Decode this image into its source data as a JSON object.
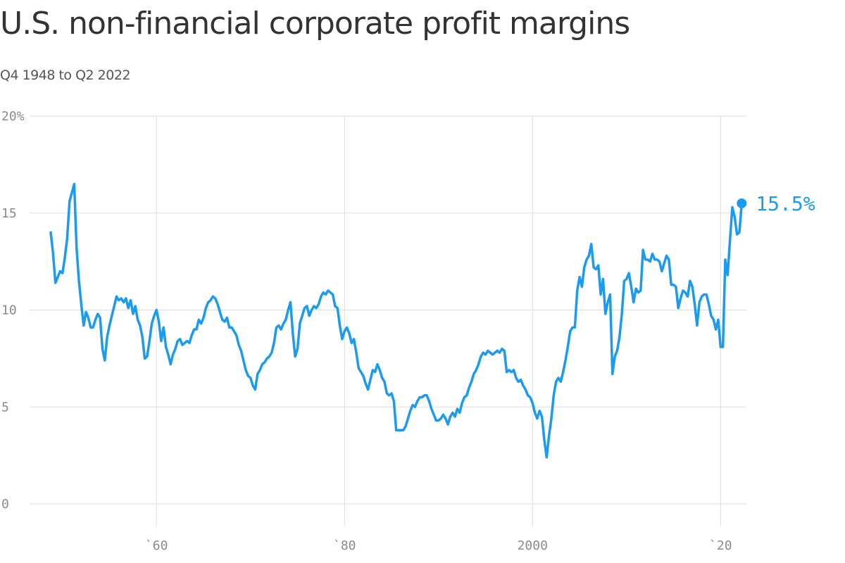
{
  "title": "U.S. non-financial corporate profit margins",
  "subtitle": "Q4 1948 to Q2 2022",
  "chart_data": {
    "type": "line",
    "ylim": [
      0,
      20
    ],
    "xlim": [
      1946.5,
      2022.75
    ],
    "y_ticks": [
      {
        "value": 0,
        "label": "0"
      },
      {
        "value": 5,
        "label": "5"
      },
      {
        "value": 10,
        "label": "10"
      },
      {
        "value": 15,
        "label": "15"
      },
      {
        "value": 20,
        "label": "20%"
      }
    ],
    "x_ticks": [
      {
        "value": 1960,
        "label": "`60"
      },
      {
        "value": 1980,
        "label": "`80"
      },
      {
        "value": 2000,
        "label": "2000"
      },
      {
        "value": 2020,
        "label": "`20"
      }
    ],
    "grid": true,
    "colors": {
      "line": "#1a9bf0",
      "grid": "#dddddd"
    },
    "end_label": "15.5%",
    "series": [
      {
        "points": [
          [
            1948.75,
            14.0
          ],
          [
            1949.0,
            12.9
          ],
          [
            1949.25,
            11.4
          ],
          [
            1949.5,
            11.7
          ],
          [
            1949.75,
            12.0
          ],
          [
            1950.0,
            11.9
          ],
          [
            1950.25,
            12.7
          ],
          [
            1950.5,
            13.7
          ],
          [
            1950.75,
            15.6
          ],
          [
            1951.25,
            16.5
          ],
          [
            1951.5,
            13.2
          ],
          [
            1951.75,
            11.5
          ],
          [
            1952.0,
            10.3
          ],
          [
            1952.25,
            9.2
          ],
          [
            1952.5,
            9.9
          ],
          [
            1952.75,
            9.6
          ],
          [
            1953.0,
            9.1
          ],
          [
            1953.25,
            9.1
          ],
          [
            1953.5,
            9.5
          ],
          [
            1953.75,
            9.8
          ],
          [
            1954.0,
            9.6
          ],
          [
            1954.25,
            8.0
          ],
          [
            1954.5,
            7.4
          ],
          [
            1954.75,
            8.6
          ],
          [
            1955.0,
            9.2
          ],
          [
            1955.25,
            9.7
          ],
          [
            1955.5,
            10.2
          ],
          [
            1955.75,
            10.7
          ],
          [
            1956.0,
            10.5
          ],
          [
            1956.25,
            10.6
          ],
          [
            1956.5,
            10.4
          ],
          [
            1956.75,
            10.6
          ],
          [
            1957.0,
            10.1
          ],
          [
            1957.25,
            10.5
          ],
          [
            1957.5,
            9.8
          ],
          [
            1957.75,
            10.2
          ],
          [
            1958.0,
            9.5
          ],
          [
            1958.25,
            9.2
          ],
          [
            1958.5,
            8.6
          ],
          [
            1958.75,
            7.5
          ],
          [
            1959.0,
            7.6
          ],
          [
            1959.25,
            8.4
          ],
          [
            1959.5,
            9.3
          ],
          [
            1959.75,
            9.7
          ],
          [
            1960.0,
            10.0
          ],
          [
            1960.25,
            9.4
          ],
          [
            1960.5,
            8.4
          ],
          [
            1960.75,
            9.1
          ],
          [
            1961.0,
            8.1
          ],
          [
            1961.25,
            7.7
          ],
          [
            1961.5,
            7.2
          ],
          [
            1961.75,
            7.7
          ],
          [
            1962.0,
            8.0
          ],
          [
            1962.25,
            8.4
          ],
          [
            1962.5,
            8.5
          ],
          [
            1962.75,
            8.2
          ],
          [
            1963.0,
            8.3
          ],
          [
            1963.25,
            8.4
          ],
          [
            1963.5,
            8.3
          ],
          [
            1963.75,
            8.7
          ],
          [
            1964.0,
            9.0
          ],
          [
            1964.25,
            9.0
          ],
          [
            1964.5,
            9.5
          ],
          [
            1964.75,
            9.3
          ],
          [
            1965.0,
            9.6
          ],
          [
            1965.25,
            10.1
          ],
          [
            1965.5,
            10.4
          ],
          [
            1965.75,
            10.5
          ],
          [
            1966.0,
            10.7
          ],
          [
            1966.25,
            10.6
          ],
          [
            1966.5,
            10.3
          ],
          [
            1966.75,
            9.9
          ],
          [
            1967.0,
            9.5
          ],
          [
            1967.25,
            9.4
          ],
          [
            1967.5,
            9.6
          ],
          [
            1967.75,
            9.1
          ],
          [
            1968.0,
            9.1
          ],
          [
            1968.25,
            8.9
          ],
          [
            1968.5,
            8.7
          ],
          [
            1968.75,
            8.2
          ],
          [
            1969.0,
            7.9
          ],
          [
            1969.25,
            7.4
          ],
          [
            1969.5,
            6.9
          ],
          [
            1969.75,
            6.6
          ],
          [
            1970.0,
            6.5
          ],
          [
            1970.25,
            6.1
          ],
          [
            1970.5,
            5.9
          ],
          [
            1970.75,
            6.7
          ],
          [
            1971.0,
            6.9
          ],
          [
            1971.25,
            7.2
          ],
          [
            1971.5,
            7.3
          ],
          [
            1971.75,
            7.5
          ],
          [
            1972.0,
            7.6
          ],
          [
            1972.25,
            7.8
          ],
          [
            1972.5,
            8.3
          ],
          [
            1972.75,
            9.1
          ],
          [
            1973.0,
            9.2
          ],
          [
            1973.25,
            9.0
          ],
          [
            1973.5,
            9.3
          ],
          [
            1973.75,
            9.5
          ],
          [
            1974.0,
            10.0
          ],
          [
            1974.25,
            10.4
          ],
          [
            1974.5,
            8.8
          ],
          [
            1974.75,
            7.6
          ],
          [
            1975.0,
            8.0
          ],
          [
            1975.25,
            9.3
          ],
          [
            1975.5,
            9.7
          ],
          [
            1975.75,
            10.1
          ],
          [
            1976.0,
            10.2
          ],
          [
            1976.25,
            9.7
          ],
          [
            1976.5,
            10.0
          ],
          [
            1976.75,
            10.2
          ],
          [
            1977.0,
            10.1
          ],
          [
            1977.25,
            10.3
          ],
          [
            1977.5,
            10.7
          ],
          [
            1977.75,
            10.9
          ],
          [
            1978.0,
            10.8
          ],
          [
            1978.25,
            11.0
          ],
          [
            1978.5,
            10.9
          ],
          [
            1978.75,
            10.8
          ],
          [
            1979.0,
            10.2
          ],
          [
            1979.25,
            10.1
          ],
          [
            1979.5,
            9.2
          ],
          [
            1979.75,
            8.5
          ],
          [
            1980.0,
            8.9
          ],
          [
            1980.25,
            9.1
          ],
          [
            1980.5,
            8.8
          ],
          [
            1980.75,
            8.3
          ],
          [
            1981.0,
            8.5
          ],
          [
            1981.25,
            7.8
          ],
          [
            1981.5,
            7.0
          ],
          [
            1981.75,
            6.8
          ],
          [
            1982.0,
            6.6
          ],
          [
            1982.25,
            6.2
          ],
          [
            1982.5,
            5.9
          ],
          [
            1982.75,
            6.4
          ],
          [
            1983.0,
            6.9
          ],
          [
            1983.25,
            6.8
          ],
          [
            1983.5,
            7.2
          ],
          [
            1983.75,
            6.9
          ],
          [
            1984.0,
            6.5
          ],
          [
            1984.25,
            6.3
          ],
          [
            1984.5,
            5.7
          ],
          [
            1984.75,
            5.6
          ],
          [
            1985.0,
            5.7
          ],
          [
            1985.25,
            5.3
          ],
          [
            1985.5,
            3.8
          ],
          [
            1985.75,
            3.8
          ],
          [
            1986.0,
            3.8
          ],
          [
            1986.25,
            3.8
          ],
          [
            1986.5,
            4.0
          ],
          [
            1986.75,
            4.4
          ],
          [
            1987.0,
            4.8
          ],
          [
            1987.25,
            5.1
          ],
          [
            1987.5,
            5.0
          ],
          [
            1987.75,
            5.3
          ],
          [
            1988.0,
            5.5
          ],
          [
            1988.25,
            5.5
          ],
          [
            1988.5,
            5.6
          ],
          [
            1988.75,
            5.6
          ],
          [
            1989.0,
            5.3
          ],
          [
            1989.25,
            4.9
          ],
          [
            1989.5,
            4.6
          ],
          [
            1989.75,
            4.3
          ],
          [
            1990.0,
            4.3
          ],
          [
            1990.25,
            4.4
          ],
          [
            1990.5,
            4.6
          ],
          [
            1990.75,
            4.4
          ],
          [
            1991.0,
            4.1
          ],
          [
            1991.25,
            4.5
          ],
          [
            1991.5,
            4.7
          ],
          [
            1991.75,
            4.5
          ],
          [
            1992.0,
            4.9
          ],
          [
            1992.25,
            4.7
          ],
          [
            1992.5,
            5.2
          ],
          [
            1992.75,
            5.5
          ],
          [
            1993.0,
            5.6
          ],
          [
            1993.25,
            6.0
          ],
          [
            1993.5,
            6.3
          ],
          [
            1993.75,
            6.7
          ],
          [
            1994.0,
            6.9
          ],
          [
            1994.25,
            7.2
          ],
          [
            1994.5,
            7.6
          ],
          [
            1994.75,
            7.8
          ],
          [
            1995.0,
            7.7
          ],
          [
            1995.25,
            7.9
          ],
          [
            1995.5,
            7.8
          ],
          [
            1995.75,
            7.7
          ],
          [
            1996.0,
            7.8
          ],
          [
            1996.25,
            7.9
          ],
          [
            1996.5,
            7.8
          ],
          [
            1996.75,
            8.0
          ],
          [
            1997.0,
            7.9
          ],
          [
            1997.25,
            6.8
          ],
          [
            1997.5,
            6.9
          ],
          [
            1997.75,
            6.8
          ],
          [
            1998.0,
            6.9
          ],
          [
            1998.25,
            6.5
          ],
          [
            1998.5,
            6.3
          ],
          [
            1998.75,
            6.4
          ],
          [
            1999.0,
            6.1
          ],
          [
            1999.25,
            5.9
          ],
          [
            1999.5,
            5.6
          ],
          [
            1999.75,
            5.5
          ],
          [
            2000.0,
            5.2
          ],
          [
            2000.25,
            4.7
          ],
          [
            2000.5,
            4.4
          ],
          [
            2000.75,
            4.8
          ],
          [
            2001.0,
            4.5
          ],
          [
            2001.25,
            3.3
          ],
          [
            2001.5,
            2.4
          ],
          [
            2001.75,
            3.5
          ],
          [
            2002.0,
            4.4
          ],
          [
            2002.25,
            5.6
          ],
          [
            2002.5,
            6.3
          ],
          [
            2002.75,
            6.5
          ],
          [
            2003.0,
            6.3
          ],
          [
            2003.25,
            6.8
          ],
          [
            2003.5,
            7.4
          ],
          [
            2003.75,
            8.1
          ],
          [
            2004.0,
            8.9
          ],
          [
            2004.25,
            9.1
          ],
          [
            2004.5,
            9.1
          ],
          [
            2004.75,
            11.0
          ],
          [
            2005.0,
            11.7
          ],
          [
            2005.25,
            11.2
          ],
          [
            2005.5,
            12.2
          ],
          [
            2005.75,
            12.6
          ],
          [
            2006.0,
            12.8
          ],
          [
            2006.25,
            13.4
          ],
          [
            2006.5,
            12.2
          ],
          [
            2006.75,
            12.1
          ],
          [
            2007.0,
            12.3
          ],
          [
            2007.25,
            10.8
          ],
          [
            2007.5,
            11.6
          ],
          [
            2007.75,
            9.8
          ],
          [
            2008.0,
            10.4
          ],
          [
            2008.25,
            10.8
          ],
          [
            2008.5,
            6.7
          ],
          [
            2008.75,
            7.6
          ],
          [
            2009.0,
            7.9
          ],
          [
            2009.25,
            8.6
          ],
          [
            2009.5,
            9.8
          ],
          [
            2009.75,
            11.5
          ],
          [
            2010.0,
            11.6
          ],
          [
            2010.25,
            11.9
          ],
          [
            2010.5,
            11.2
          ],
          [
            2010.75,
            10.4
          ],
          [
            2011.0,
            11.1
          ],
          [
            2011.25,
            10.9
          ],
          [
            2011.5,
            11.0
          ],
          [
            2011.75,
            13.1
          ],
          [
            2012.0,
            12.6
          ],
          [
            2012.25,
            12.6
          ],
          [
            2012.5,
            12.5
          ],
          [
            2012.75,
            12.9
          ],
          [
            2013.0,
            12.6
          ],
          [
            2013.25,
            12.6
          ],
          [
            2013.5,
            12.5
          ],
          [
            2013.75,
            12.0
          ],
          [
            2014.0,
            12.4
          ],
          [
            2014.25,
            12.8
          ],
          [
            2014.5,
            12.6
          ],
          [
            2014.75,
            11.3
          ],
          [
            2015.0,
            11.3
          ],
          [
            2015.25,
            11.2
          ],
          [
            2015.5,
            10.1
          ],
          [
            2015.75,
            10.6
          ],
          [
            2016.0,
            11.0
          ],
          [
            2016.25,
            10.9
          ],
          [
            2016.5,
            10.7
          ],
          [
            2016.75,
            11.5
          ],
          [
            2017.0,
            11.2
          ],
          [
            2017.25,
            10.3
          ],
          [
            2017.5,
            9.2
          ],
          [
            2017.75,
            10.4
          ],
          [
            2018.0,
            10.7
          ],
          [
            2018.25,
            10.8
          ],
          [
            2018.5,
            10.8
          ],
          [
            2018.75,
            10.3
          ],
          [
            2019.0,
            9.7
          ],
          [
            2019.25,
            9.5
          ],
          [
            2019.5,
            9.0
          ],
          [
            2019.75,
            9.5
          ],
          [
            2020.0,
            8.1
          ],
          [
            2020.25,
            8.1
          ],
          [
            2020.5,
            12.6
          ],
          [
            2020.75,
            11.8
          ],
          [
            2021.0,
            13.6
          ],
          [
            2021.25,
            15.3
          ],
          [
            2021.5,
            14.8
          ],
          [
            2021.75,
            13.9
          ],
          [
            2022.0,
            14.0
          ],
          [
            2022.25,
            15.5
          ]
        ]
      }
    ]
  }
}
